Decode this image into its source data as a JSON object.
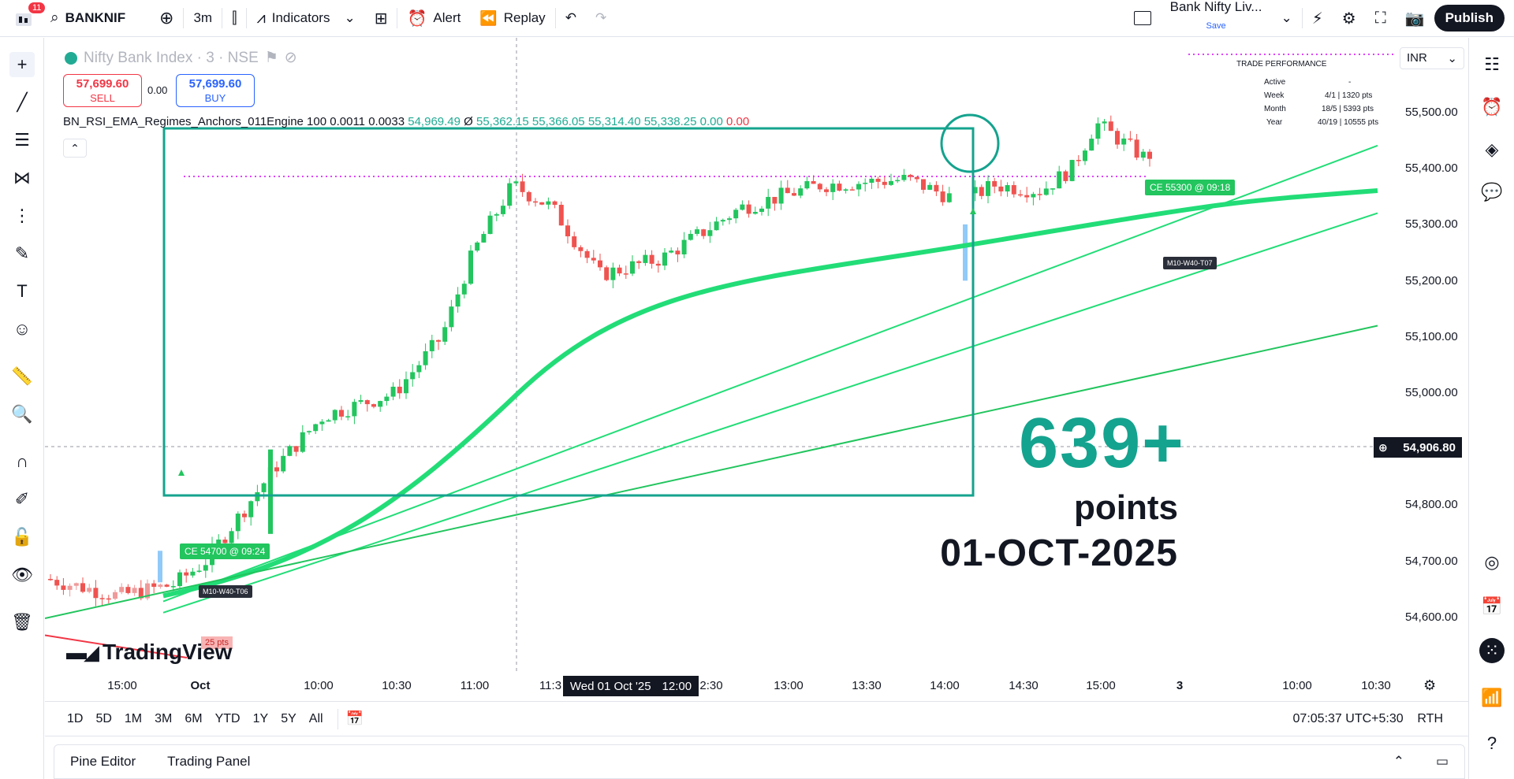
{
  "topbar": {
    "notif_count": "11",
    "symbol": "BANKNIF",
    "interval": "3m",
    "indicators_label": "Indicators",
    "alert_label": "Alert",
    "replay_label": "Replay",
    "layout_name": "Bank Nifty Liv...",
    "layout_save": "Save",
    "publish_label": "Publish"
  },
  "legend": {
    "title": "Nifty Bank Index · 3 · NSE",
    "sell_price": "57,699.60",
    "sell_label": "SELL",
    "spread": "0.00",
    "buy_price": "57,699.60",
    "buy_label": "BUY",
    "indicator_name": "BN_RSI_EMA_Regimes_Anchors_011Engine 100 0.0011 0.0033",
    "ind_v1": "54,969.49",
    "ind_sym": "Ø",
    "ind_v2": "55,362.15",
    "ind_v3": "55,366.05",
    "ind_v4": "55,314.40",
    "ind_v5": "55,338.25",
    "ind_v6": "0.00",
    "ind_v7": "0.00"
  },
  "currency": "INR",
  "price_axis": [
    "55,500.00",
    "55,400.00",
    "55,300.00",
    "55,200.00",
    "55,100.00",
    "55,000.00",
    "54,800.00",
    "54,700.00",
    "54,600.00"
  ],
  "current_price": "54,906.80",
  "time_axis": [
    "15:00",
    "Oct",
    "10:00",
    "10:30",
    "11:00",
    "11:3",
    "2:30",
    "13:00",
    "13:30",
    "14:00",
    "14:30",
    "15:00",
    "3",
    "10:00",
    "10:30"
  ],
  "crosshair_date": "Wed 01 Oct '25",
  "crosshair_time": "12:00",
  "trade_perf": {
    "title": "TRADE PERFORMANCE",
    "rows": [
      {
        "label": "Active",
        "value": "-"
      },
      {
        "label": "Week",
        "value": "4/1 | 1320 pts"
      },
      {
        "label": "Month",
        "value": "18/5 | 5393 pts"
      },
      {
        "label": "Year",
        "value": "40/19 | 10555 pts"
      }
    ]
  },
  "overlay": {
    "points_value": "639+",
    "points_label": "points",
    "date": "01-OCT-2025"
  },
  "tags": {
    "entry1": "CE 54700 @ 09:24",
    "anchor1": "M10-W40-T06",
    "entry2": "CE 55300 @ 09:18",
    "anchor2": "M10-W40-T07",
    "pts_small": "25 pts"
  },
  "logo_text": "TradingView",
  "ranges": [
    "1D",
    "5D",
    "1M",
    "3M",
    "6M",
    "YTD",
    "1Y",
    "5Y",
    "All"
  ],
  "clock": "07:05:37 UTC+5:30",
  "session": "RTH",
  "panels": {
    "pine": "Pine Editor",
    "trading": "Trading Panel"
  },
  "colors": {
    "up": "#22c55e",
    "down": "#ef5350",
    "box": "#14a38e",
    "ema": "#22dd77",
    "dotted": "#e040fb"
  }
}
